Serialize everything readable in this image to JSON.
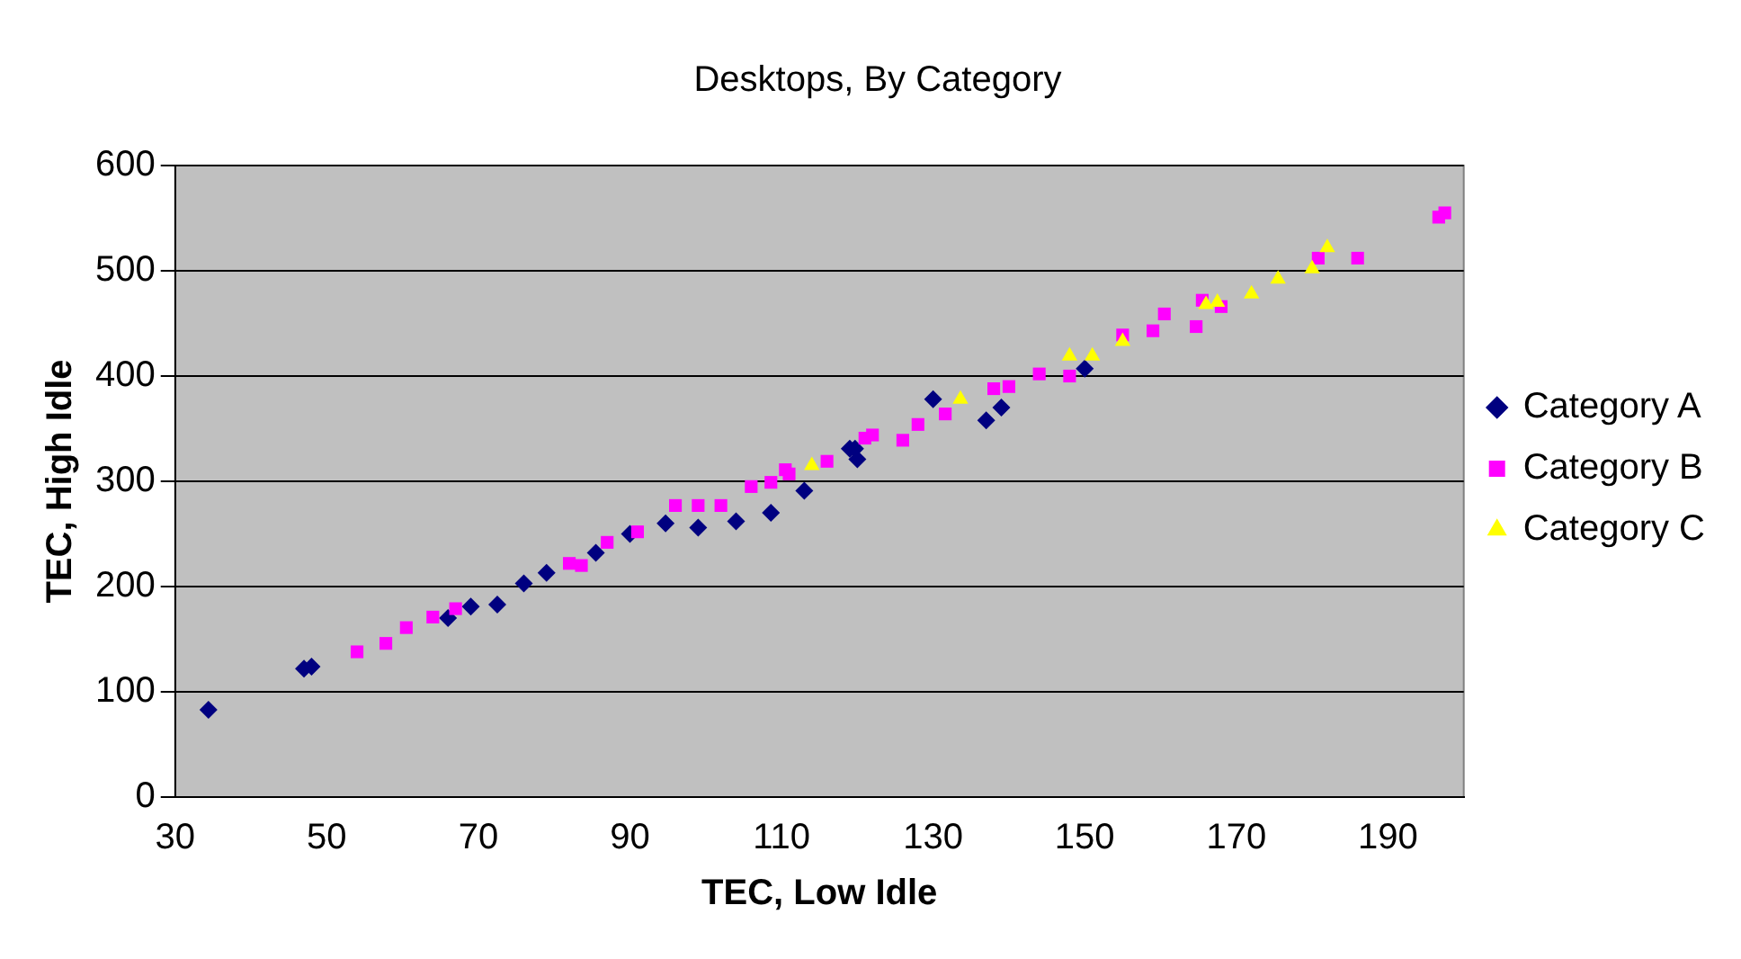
{
  "chart_data": {
    "type": "scatter",
    "title": "Desktops, By Category",
    "xlabel": "TEC, Low Idle",
    "ylabel": "TEC, High Idle",
    "xlim": [
      30,
      200
    ],
    "xticks": [
      30,
      50,
      70,
      90,
      110,
      130,
      150,
      170,
      190
    ],
    "ylim": [
      0,
      600
    ],
    "yticks": [
      0,
      100,
      200,
      300,
      400,
      500,
      600
    ],
    "grid": "y",
    "legend": "right",
    "series": [
      {
        "name": "Category A",
        "color": "#000080",
        "marker": "diamond",
        "x": [
          34.4,
          47,
          48,
          66,
          69,
          72.5,
          76,
          79,
          85.5,
          90,
          94.7,
          99,
          104,
          108.6,
          113,
          119,
          120,
          119.7,
          130,
          137,
          139,
          150
        ],
        "values": [
          83,
          122,
          124,
          170,
          181,
          183,
          203,
          213,
          232,
          250,
          260,
          256,
          262,
          270,
          291,
          331,
          321,
          331,
          378,
          358,
          370,
          407
        ]
      },
      {
        "name": "Category B",
        "color": "#ff00ff",
        "marker": "square",
        "x": [
          54,
          57.8,
          60.5,
          64,
          67,
          82,
          83.6,
          87,
          91,
          96,
          99,
          102,
          106,
          108.6,
          110.5,
          111,
          116,
          121,
          122,
          126,
          128,
          131.6,
          138,
          140,
          144,
          148,
          155,
          159,
          160.5,
          164.7,
          165.5,
          168,
          180.8,
          186,
          196.7,
          197.5
        ],
        "values": [
          138,
          146,
          161,
          171,
          179,
          222,
          220,
          242,
          252,
          277,
          277,
          277,
          295,
          299,
          311,
          307,
          319,
          341,
          344,
          339,
          354,
          364,
          388,
          390,
          402,
          400,
          439,
          443,
          459,
          447,
          472,
          466,
          512,
          512,
          551,
          555
        ]
      },
      {
        "name": "Category C",
        "color": "#ffff00",
        "marker": "triangle",
        "x": [
          114,
          133.6,
          148,
          151,
          155,
          166,
          167.5,
          172,
          175.5,
          180,
          182
        ],
        "values": [
          315,
          378,
          419,
          419,
          433,
          468,
          470,
          478,
          492,
          502,
          522
        ]
      }
    ]
  }
}
